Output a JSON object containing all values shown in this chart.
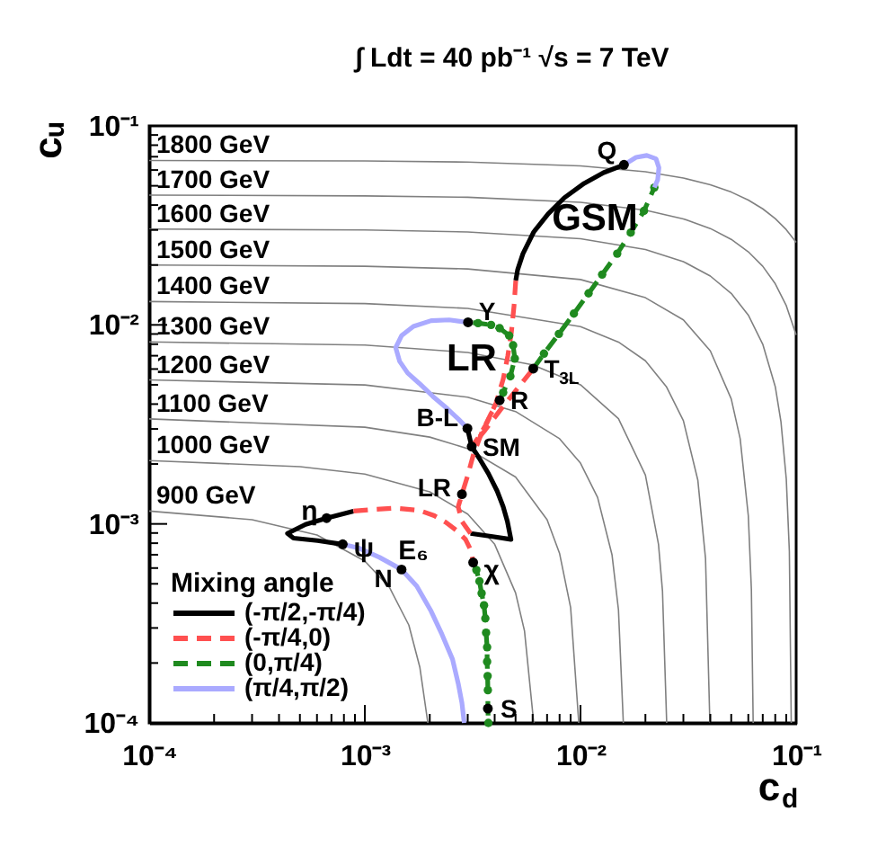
{
  "chart_data": {
    "type": "line",
    "title": "∫ Ldt = 40 pb⁻¹   √s = 7 TeV",
    "xlabel": "c$_{d}$",
    "ylabel": "cᵤ",
    "legend_title": "Mixing angle",
    "legend": "bottom left",
    "log": "xy",
    "xlim": [
      0.0001,
      0.1
    ],
    "ylim": [
      0.0001,
      0.1
    ],
    "xticks": [
      {
        "value": 0.0001,
        "label": "10⁻⁴"
      },
      {
        "value": 0.0002,
        "label": null
      },
      {
        "value": 0.0003,
        "label": null
      },
      {
        "value": 0.0004,
        "label": null
      },
      {
        "value": 0.0005,
        "label": null
      },
      {
        "value": 0.0006,
        "label": null
      },
      {
        "value": 0.0007,
        "label": null
      },
      {
        "value": 0.0008,
        "label": null
      },
      {
        "value": 0.0009,
        "label": null
      },
      {
        "value": 0.001,
        "label": "10⁻³"
      },
      {
        "value": 0.002,
        "label": null
      },
      {
        "value": 0.003,
        "label": null
      },
      {
        "value": 0.004,
        "label": null
      },
      {
        "value": 0.005,
        "label": null
      },
      {
        "value": 0.006,
        "label": null
      },
      {
        "value": 0.007,
        "label": null
      },
      {
        "value": 0.008,
        "label": null
      },
      {
        "value": 0.009,
        "label": null
      },
      {
        "value": 0.01,
        "label": "10⁻²"
      },
      {
        "value": 0.02,
        "label": null
      },
      {
        "value": 0.03,
        "label": null
      },
      {
        "value": 0.04,
        "label": null
      },
      {
        "value": 0.05,
        "label": null
      },
      {
        "value": 0.06,
        "label": null
      },
      {
        "value": 0.07,
        "label": null
      },
      {
        "value": 0.08,
        "label": null
      },
      {
        "value": 0.09,
        "label": null
      },
      {
        "value": 0.1,
        "label": "10⁻¹"
      }
    ],
    "yticks": [
      {
        "value": 0.0001,
        "label": "10⁻⁴"
      },
      {
        "value": 0.0002,
        "label": null
      },
      {
        "value": 0.0003,
        "label": null
      },
      {
        "value": 0.0004,
        "label": null
      },
      {
        "value": 0.0005,
        "label": null
      },
      {
        "value": 0.0006,
        "label": null
      },
      {
        "value": 0.0007,
        "label": null
      },
      {
        "value": 0.0008,
        "label": null
      },
      {
        "value": 0.0009,
        "label": null
      },
      {
        "value": 0.001,
        "label": "10⁻³"
      },
      {
        "value": 0.002,
        "label": null
      },
      {
        "value": 0.003,
        "label": null
      },
      {
        "value": 0.004,
        "label": null
      },
      {
        "value": 0.005,
        "label": null
      },
      {
        "value": 0.006,
        "label": null
      },
      {
        "value": 0.007,
        "label": null
      },
      {
        "value": 0.008,
        "label": null
      },
      {
        "value": 0.009,
        "label": null
      },
      {
        "value": 0.01,
        "label": "10⁻²"
      },
      {
        "value": 0.02,
        "label": null
      },
      {
        "value": 0.03,
        "label": null
      },
      {
        "value": 0.04,
        "label": null
      },
      {
        "value": 0.05,
        "label": null
      },
      {
        "value": 0.06,
        "label": null
      },
      {
        "value": 0.07,
        "label": null
      },
      {
        "value": 0.08,
        "label": null
      },
      {
        "value": 0.09,
        "label": null
      },
      {
        "value": 0.1,
        "label": "10⁻¹"
      }
    ],
    "series": [
      {
        "color": "#808080",
        "x": [
          0.0001,
          0.001,
          0.003,
          0.01,
          0.02,
          0.03,
          0.04,
          0.05,
          0.06,
          0.07,
          0.08,
          0.09,
          0.1
        ],
        "values": [
          0.067,
          0.0666,
          0.0658,
          0.0629,
          0.0588,
          0.0547,
          0.0506,
          0.0465,
          0.0424,
          0.0383,
          0.0342,
          0.0301,
          0.026
        ]
      },
      {
        "color": "#808080",
        "x": [
          0.0001,
          0.001,
          0.003,
          0.01,
          0.02,
          0.03,
          0.04,
          0.05,
          0.06,
          0.07,
          0.08,
          0.09,
          0.1
        ],
        "values": [
          0.0449,
          0.0445,
          0.0438,
          0.0413,
          0.0377,
          0.0341,
          0.0305,
          0.0269,
          0.0233,
          0.0197,
          0.0161,
          0.0125,
          0.0089
        ]
      },
      {
        "color": "#808080",
        "x": [
          0.0001,
          0.001,
          0.003,
          0.01,
          0.02,
          0.03,
          0.04,
          0.05,
          0.06,
          0.07,
          0.08,
          0.085,
          0.09,
          0.093,
          0.0949
        ],
        "values": [
          0.0303,
          0.03,
          0.0293,
          0.0271,
          0.0239,
          0.0208,
          0.0176,
          0.0144,
          0.0112,
          0.008,
          0.0049,
          0.00327,
          0.00168,
          0.00073,
          0.0001
        ]
      },
      {
        "color": "#808080",
        "x": [
          0.0001,
          0.001,
          0.003,
          0.01,
          0.02,
          0.03,
          0.04,
          0.05,
          0.055,
          0.06,
          0.062,
          0.0632
        ],
        "values": [
          0.02,
          0.0197,
          0.0191,
          0.0169,
          0.0137,
          0.0106,
          0.0074,
          0.00425,
          0.00268,
          0.0011,
          0.00047,
          0.0001
        ]
      },
      {
        "color": "#808080",
        "x": [
          0.0001,
          0.001,
          0.003,
          0.01,
          0.015,
          0.02,
          0.025,
          0.03,
          0.035,
          0.038,
          0.0398
        ],
        "values": [
          0.0131,
          0.0128,
          0.0121,
          0.0098,
          0.0082,
          0.0066,
          0.0049,
          0.0033,
          0.00166,
          0.00067,
          0.0001
        ]
      },
      {
        "color": "#808080",
        "x": [
          0.0001,
          0.001,
          0.003,
          0.006,
          0.01,
          0.015,
          0.02,
          0.023,
          0.024,
          0.0251
        ],
        "values": [
          0.00821,
          0.00792,
          0.00727,
          0.0063,
          0.005,
          0.00338,
          0.00176,
          0.00079,
          0.00046,
          0.0001
        ]
      },
      {
        "color": "#808080",
        "x": [
          0.0001,
          0.001,
          0.003,
          0.005,
          0.008,
          0.01,
          0.012,
          0.014,
          0.015,
          0.0158
        ],
        "values": [
          0.00529,
          0.00499,
          0.00433,
          0.00367,
          0.00268,
          0.00202,
          0.00136,
          0.0007,
          0.00037,
          0.0001
        ]
      },
      {
        "color": "#808080",
        "x": [
          0.0001,
          0.001,
          0.002,
          0.003,
          0.005,
          0.007,
          0.008,
          0.009,
          0.00982
        ],
        "values": [
          0.00337,
          0.00306,
          0.00273,
          0.00239,
          0.00172,
          0.00105,
          0.00071,
          0.00038,
          0.0001
        ]
      },
      {
        "color": "#808080",
        "x": [
          0.0001,
          0.0005,
          0.001,
          0.002,
          0.003,
          0.004,
          0.005,
          0.0055,
          0.00607
        ],
        "values": [
          0.00208,
          0.00194,
          0.00178,
          0.00145,
          0.00112,
          0.00079,
          0.00045,
          0.00029,
          0.0001
        ]
      },
      {
        "color": "#808080",
        "x": [
          0.0001,
          0.0003,
          0.0006,
          0.001,
          0.0013,
          0.0016,
          0.0018,
          0.00196
        ],
        "values": [
          0.00116,
          0.00105,
          0.00088,
          0.00065,
          0.00048,
          0.00031,
          0.00019,
          0.0001
        ]
      },
      {
        "name": "(-π/2,-π/4)",
        "color": "#000000",
        "x": [
          0.0159,
          0.0128,
          0.0104,
          0.00841,
          0.00708,
          0.00607,
          0.00541,
          0.00511,
          0.00501,
          null,
          0.00299,
          0.00313,
          0.0034,
          0.00374,
          0.00411,
          0.00438,
          0.00458,
          0.00476,
          0.00385,
          0.00309,
          null,
          0.000886,
          0.000665,
          0.000531,
          0.000438,
          0.000467,
          0.000604,
          0.00079
        ],
        "values": [
          0.0637,
          0.0582,
          0.0514,
          0.0435,
          0.0361,
          0.0293,
          0.0228,
          0.0189,
          0.0167,
          null,
          0.00302,
          0.00245,
          0.00213,
          0.00179,
          0.00146,
          0.00122,
          0.00103,
          0.000836,
          0.000866,
          0.000896,
          null,
          0.00116,
          0.00107,
          0.000994,
          0.000896,
          0.000848,
          0.000824,
          0.00079
        ]
      },
      {
        "name": "(-π/4,0)",
        "color": "#ff5050",
        "line_style": "dashed",
        "x": [
          0.00501,
          0.00492,
          0.00478,
          0.0046,
          0.00438,
          0.00406,
          0.00369,
          0.00338,
          0.00313,
          0.00362,
          0.00422,
          0.00492,
          0.00604,
          null,
          0.00309,
          0.00282,
          0.00271,
          0.00282,
          0.00299,
          0.00318,
          0.0035,
          0.00385,
          0.00422,
          null,
          0.000886,
          0.00107,
          0.00139,
          0.00179,
          0.0021,
          0.00237,
          0.00266,
          0.00293,
          0.0031,
          0.00318
        ],
        "values": [
          0.0167,
          0.0125,
          0.00915,
          0.00698,
          0.00533,
          0.00406,
          0.00323,
          0.00274,
          0.00245,
          0.00297,
          0.0037,
          0.00456,
          0.00603,
          null,
          0.000896,
          0.00103,
          0.00122,
          0.00141,
          0.00173,
          0.00221,
          0.00291,
          0.00359,
          0.00418,
          null,
          0.00116,
          0.00118,
          0.0012,
          0.00117,
          0.0011,
          0.00102,
          0.000928,
          0.000836,
          0.000738,
          0.00064
        ]
      },
      {
        "name": "(0,π/4)",
        "color": "#1f8a1f",
        "line_style": "dashed",
        "marker": "circle",
        "x": [
          0.00604,
          0.00677,
          0.00794,
          0.00932,
          0.0109,
          0.0126,
          0.0148,
          0.0171,
          0.0197,
          0.022,
          null,
          0.00422,
          0.00438,
          0.00473,
          0.00496,
          0.00487,
          0.00467,
          0.00422,
          0.00385,
          0.00335,
          0.00301,
          null,
          0.00318,
          0.00329,
          0.0034,
          0.00348,
          0.00357,
          0.00362,
          0.00365,
          0.00369,
          0.00369,
          0.00371,
          0.00372,
          0.00372,
          0.00374
        ],
        "values": [
          0.00603,
          0.00717,
          0.00901,
          0.0114,
          0.0144,
          0.0179,
          0.0228,
          0.0291,
          0.0374,
          0.049,
          null,
          0.00418,
          0.00457,
          0.00552,
          0.00677,
          0.0079,
          0.00883,
          0.00963,
          0.01,
          0.0102,
          0.0103,
          null,
          0.00064,
          0.000587,
          0.000515,
          0.000448,
          0.00039,
          0.000335,
          0.000284,
          0.00024,
          0.000203,
          0.000172,
          0.000146,
          0.000118,
          0.0001
        ]
      },
      {
        "name": "(π/4,π/2)",
        "color": "#aaaaff",
        "x": [
          0.022,
          0.0228,
          0.0231,
          0.0224,
          0.0203,
          0.0181,
          0.0159,
          null,
          0.00301,
          0.00246,
          0.00203,
          0.00168,
          0.00148,
          0.00139,
          0.00145,
          0.00158,
          0.00179,
          0.00207,
          0.00242,
          0.00271,
          0.00299,
          null,
          0.00079,
          0.000944,
          0.00117,
          0.00148,
          0.00174,
          0.00203,
          0.00228,
          0.00255,
          0.00271,
          0.00282,
          0.00289
        ],
        "values": [
          0.049,
          0.0536,
          0.0616,
          0.0683,
          0.071,
          0.0695,
          0.0637,
          null,
          0.0103,
          0.0106,
          0.0105,
          0.00983,
          0.00883,
          0.00769,
          0.00656,
          0.00573,
          0.00508,
          0.00437,
          0.00378,
          0.00337,
          0.00302,
          null,
          0.00079,
          0.000754,
          0.000679,
          0.00059,
          0.000487,
          0.000364,
          0.000278,
          0.000209,
          0.000158,
          0.000126,
          0.0001
        ]
      },
      {
        "type": "scatter",
        "color": "#000000",
        "marker": "circle",
        "x": [
          0.0159,
          0.00301,
          0.00604,
          0.00422,
          0.00299,
          0.00313,
          0.00282,
          0.000665,
          0.00079,
          0.00148,
          0.00318,
          0.00372
        ],
        "values": [
          0.0637,
          0.0103,
          0.00603,
          0.00418,
          0.00302,
          0.00245,
          0.00141,
          0.00107,
          0.00079,
          0.00059,
          0.00064,
          0.000118
        ]
      }
    ],
    "annotations": [
      {
        "text": "1800 GeV",
        "x": 0.0001,
        "y": 0.067
      },
      {
        "text": "1700 GeV",
        "x": 0.0001,
        "y": 0.0449
      },
      {
        "text": "1600 GeV",
        "x": 0.0001,
        "y": 0.0303
      },
      {
        "text": "1500 GeV",
        "x": 0.0001,
        "y": 0.02
      },
      {
        "text": "1400 GeV",
        "x": 0.0001,
        "y": 0.0131
      },
      {
        "text": "1300 GeV",
        "x": 0.0001,
        "y": 0.00821
      },
      {
        "text": "1200 GeV",
        "x": 0.0001,
        "y": 0.00529
      },
      {
        "text": "1100 GeV",
        "x": 0.0001,
        "y": 0.00337
      },
      {
        "text": "1000 GeV",
        "x": 0.0001,
        "y": 0.00208
      },
      {
        "text": "900 GeV",
        "x": 0.0001,
        "y": 0.00116
      },
      {
        "text": "Q",
        "x": 0.0159,
        "y": 0.0637
      },
      {
        "text": "Y",
        "x": 0.00301,
        "y": 0.0103
      },
      {
        "text": "T$_{3L}$",
        "x": 0.00604,
        "y": 0.00603
      },
      {
        "text": "R",
        "x": 0.00422,
        "y": 0.00418
      },
      {
        "text": "B-L",
        "x": 0.00299,
        "y": 0.00302
      },
      {
        "text": "SM",
        "x": 0.00313,
        "y": 0.00245
      },
      {
        "text": "LR",
        "x": 0.00282,
        "y": 0.00141
      },
      {
        "text": "η",
        "x": 0.000665,
        "y": 0.00107
      },
      {
        "text": "ψ",
        "x": 0.00079,
        "y": 0.00079
      },
      {
        "text": "N",
        "x": 0.00148,
        "y": 0.00059
      },
      {
        "text": "χ",
        "x": 0.00318,
        "y": 0.00064
      },
      {
        "text": "S",
        "x": 0.00372,
        "y": 0.000118
      },
      "GSM",
      {
        "text": "LR",
        "x": 0.00313,
        "y": 0.00669
      },
      "E₆"
    ]
  }
}
